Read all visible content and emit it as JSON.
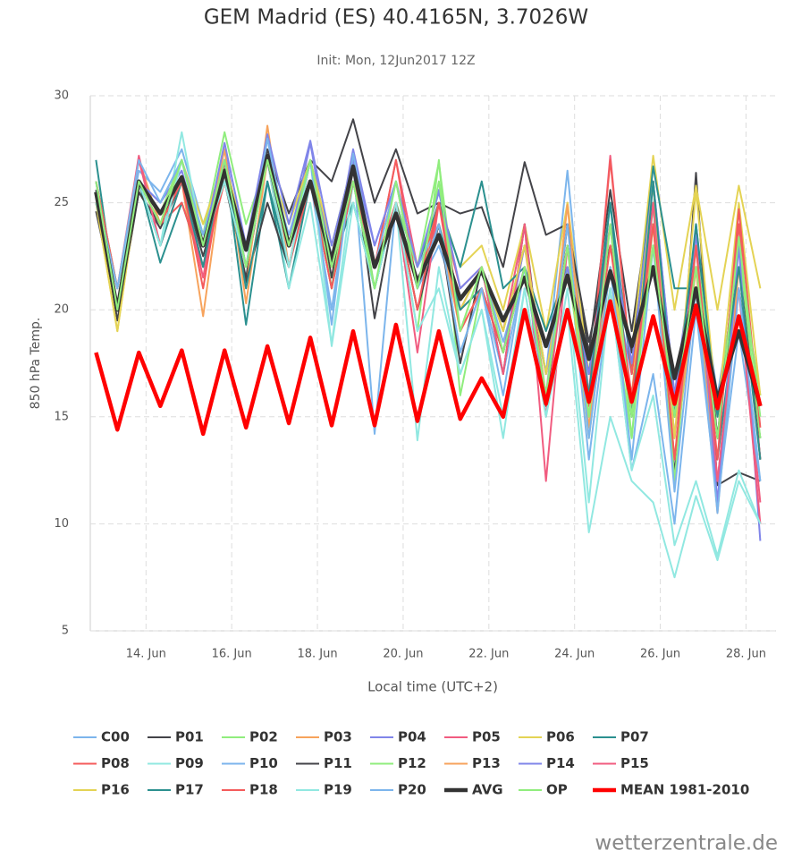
{
  "chart_data": {
    "type": "line",
    "title": "GEM Madrid (ES) 40.4165N, 3.7026W",
    "subtitle": "Init: Mon, 12Jun2017 12Z",
    "y_label": "850 hPa Temp.",
    "x_label": "Local time (UTC+2)",
    "watermark": "wetterzentrale.de",
    "grid": true,
    "xlim": [
      12.7,
      28.7
    ],
    "ylim": [
      5,
      30
    ],
    "yticks": [
      5,
      10,
      15,
      20,
      25,
      30
    ],
    "xticks": [
      {
        "value": 14,
        "label": "14. Jun"
      },
      {
        "value": 16,
        "label": "16. Jun"
      },
      {
        "value": 18,
        "label": "18. Jun"
      },
      {
        "value": 20,
        "label": "20. Jun"
      },
      {
        "value": 22,
        "label": "22. Jun"
      },
      {
        "value": 24,
        "label": "24. Jun"
      },
      {
        "value": 26,
        "label": "26. Jun"
      },
      {
        "value": 28,
        "label": "28. Jun"
      }
    ],
    "x": [
      12.833,
      13.333,
      13.833,
      14.333,
      14.833,
      15.333,
      15.833,
      16.333,
      16.833,
      17.333,
      17.833,
      18.333,
      18.833,
      19.333,
      19.833,
      20.333,
      20.833,
      21.333,
      21.833,
      22.333,
      22.833,
      23.333,
      23.833,
      24.333,
      24.833,
      25.333,
      25.833,
      26.333,
      26.833,
      27.333,
      27.833,
      28.333
    ],
    "series": [
      {
        "name": "C00",
        "color": "#7cb5ec",
        "values": [
          26,
          21,
          26.5,
          25.5,
          27.5,
          24,
          27,
          23,
          27,
          23.5,
          27,
          22.5,
          26,
          21,
          25,
          21,
          23,
          20,
          22,
          18.5,
          22,
          17,
          26.5,
          16,
          22,
          15,
          26,
          14,
          23,
          16,
          22,
          16
        ]
      },
      {
        "name": "P01",
        "color": "#434348",
        "values": [
          25.6,
          19.5,
          25.5,
          23.8,
          26,
          22.5,
          26,
          21.5,
          27.5,
          24.5,
          27,
          26,
          28.9,
          25,
          27.5,
          24.5,
          25,
          24.5,
          24.8,
          22,
          26.9,
          23.5,
          24,
          18,
          25.6,
          19,
          26,
          12.2,
          26.4,
          11.8,
          12.4,
          12
        ]
      },
      {
        "name": "P02",
        "color": "#90ed7d",
        "values": [
          26,
          20,
          26,
          25,
          27,
          23.5,
          28.3,
          24,
          27,
          24,
          27,
          23,
          27,
          22,
          25,
          19,
          27,
          16,
          21,
          18,
          22,
          17,
          23,
          14.5,
          21,
          14,
          24,
          13,
          22,
          14,
          22,
          16
        ]
      },
      {
        "name": "P03",
        "color": "#f7a35c",
        "values": [
          26,
          21,
          27,
          24,
          26,
          19.7,
          27,
          21,
          28.6,
          22,
          27,
          22,
          27,
          22,
          26,
          21,
          25,
          20,
          21,
          18,
          22,
          15.5,
          25,
          14.5,
          22,
          16,
          23,
          13,
          21,
          11,
          21,
          14
        ]
      },
      {
        "name": "P04",
        "color": "#8085e9",
        "values": [
          26,
          20,
          26,
          25,
          26.5,
          23,
          27.5,
          22,
          28,
          23,
          27.8,
          22,
          27.5,
          23,
          26,
          22,
          25.5,
          21,
          22,
          19,
          23,
          17,
          24,
          17,
          22,
          17,
          26,
          16,
          23,
          14,
          24,
          13
        ]
      },
      {
        "name": "P05",
        "color": "#f15c80",
        "values": [
          25.5,
          21,
          27.2,
          23,
          26,
          22,
          27,
          22,
          27,
          22,
          26,
          21.5,
          27,
          22,
          27,
          22,
          25,
          21,
          22,
          19,
          24,
          12,
          23,
          16,
          27.2,
          17,
          25,
          16,
          22,
          12,
          21,
          11
        ]
      },
      {
        "name": "P06",
        "color": "#e4d354",
        "values": [
          25,
          19,
          26,
          24.5,
          27,
          24,
          27,
          23,
          27,
          24,
          27,
          23,
          27,
          22,
          26,
          22,
          25,
          22,
          23,
          20,
          24,
          19,
          25,
          17,
          24,
          18,
          27.2,
          20,
          25.8,
          20,
          25.8,
          21
        ]
      },
      {
        "name": "P07",
        "color": "#2b908f",
        "values": [
          27,
          20,
          26,
          22.2,
          25,
          22,
          27,
          19.3,
          26,
          21,
          26,
          22,
          25,
          21,
          25,
          22,
          25,
          22,
          26,
          21,
          22,
          19,
          22,
          17,
          25,
          17,
          26.7,
          21,
          21,
          13,
          21,
          14
        ]
      },
      {
        "name": "P08",
        "color": "#f45b5b",
        "values": [
          25,
          20,
          26,
          24,
          25,
          22,
          26,
          22,
          27,
          23,
          26,
          21,
          27,
          22,
          27,
          21,
          25,
          20,
          21,
          18,
          22,
          16,
          23,
          16,
          27,
          17,
          24,
          15,
          22,
          14,
          24,
          13
        ]
      },
      {
        "name": "P09",
        "color": "#91e8e1",
        "values": [
          25,
          20,
          26,
          23,
          28.3,
          23,
          26,
          22,
          27,
          21,
          25,
          18.4,
          26,
          21,
          25,
          13.9,
          22,
          17,
          20,
          14,
          21,
          15,
          20,
          9.6,
          15,
          12,
          11,
          7.5,
          11.3,
          8.3,
          12,
          10
        ]
      },
      {
        "name": "P10",
        "color": "#7cb5ec",
        "values": [
          26,
          21,
          26,
          25,
          27,
          23.5,
          27,
          22,
          27,
          23,
          26,
          20,
          27,
          14.2,
          25,
          22,
          24,
          18,
          21,
          17,
          22,
          15.5,
          23,
          13,
          21,
          12.5,
          17,
          10,
          20,
          11,
          19,
          12
        ]
      },
      {
        "name": "P11",
        "color": "#434348",
        "values": [
          24.6,
          20,
          25.5,
          24,
          26.2,
          23,
          26.5,
          21.3,
          25,
          22,
          27,
          21.5,
          27,
          19.6,
          25,
          20,
          24,
          17.5,
          22,
          17,
          24,
          15.5,
          24,
          18.5,
          23,
          18,
          25,
          12,
          24,
          14,
          23,
          13
        ]
      },
      {
        "name": "P12",
        "color": "#90ed7d",
        "values": [
          26,
          21,
          26,
          24.5,
          27,
          23,
          27,
          22,
          27,
          23,
          27,
          21,
          27,
          21,
          25,
          22,
          26.9,
          19,
          22,
          19,
          23,
          17,
          22,
          15,
          24,
          14,
          25,
          12,
          23,
          15,
          23,
          14
        ]
      },
      {
        "name": "P13",
        "color": "#f7a35c",
        "values": [
          25,
          21,
          26,
          24,
          27,
          23,
          27.5,
          20.3,
          27,
          22,
          27,
          22,
          26,
          22,
          25,
          21,
          24,
          19,
          21,
          18,
          23,
          16,
          24.9,
          15,
          22,
          15.5,
          24,
          13,
          22,
          10.5,
          22,
          13
        ]
      },
      {
        "name": "P14",
        "color": "#8085e9",
        "values": [
          26,
          20,
          26,
          25,
          27,
          23,
          27.8,
          23,
          28.2,
          24,
          27.9,
          23,
          27,
          23,
          26,
          22,
          25.6,
          21,
          22,
          18,
          23,
          17,
          22,
          17,
          24,
          17.5,
          26,
          16,
          23.5,
          11,
          23,
          9.2
        ]
      },
      {
        "name": "P15",
        "color": "#f15c80",
        "values": [
          25,
          21,
          27,
          23,
          26,
          21.5,
          27,
          22,
          27,
          22,
          27,
          22,
          26,
          22,
          25,
          18,
          25,
          20,
          22,
          17,
          24,
          15,
          23,
          16,
          24,
          15,
          25,
          14,
          23,
          12,
          21,
          10
        ]
      },
      {
        "name": "P16",
        "color": "#e4d354",
        "values": [
          25,
          19,
          26,
          24,
          27,
          23,
          27,
          22,
          27,
          23,
          27,
          22,
          26,
          21,
          25,
          21,
          24,
          20,
          22,
          19,
          23,
          17,
          23,
          14,
          22,
          16,
          26,
          14,
          25.6,
          15,
          25,
          16
        ]
      },
      {
        "name": "P17",
        "color": "#2b908f",
        "values": [
          25.5,
          20,
          26,
          23,
          26,
          22,
          27,
          21,
          26,
          22,
          26,
          21,
          26,
          21,
          25,
          21,
          24,
          20,
          21,
          18,
          22,
          16,
          23,
          16,
          25,
          15,
          26,
          15,
          24,
          15,
          22,
          13
        ]
      },
      {
        "name": "P18",
        "color": "#f45b5b",
        "values": [
          26,
          21,
          26,
          24,
          26,
          21,
          27,
          22,
          27,
          22,
          26,
          21,
          26,
          22,
          25,
          20,
          25,
          19,
          21,
          18,
          22,
          16,
          23,
          15.5,
          23,
          16,
          24,
          13,
          23,
          13,
          24.7,
          14.5
        ]
      },
      {
        "name": "P19",
        "color": "#91e8e1",
        "values": [
          25,
          21,
          26,
          23,
          27,
          23,
          26,
          22,
          27,
          22,
          27,
          18.3,
          25,
          21,
          25,
          19,
          21,
          17,
          20,
          15,
          21,
          15,
          21,
          11,
          21,
          12.5,
          16,
          9,
          12,
          8.5,
          12.5,
          10
        ]
      },
      {
        "name": "P20",
        "color": "#7cb5ec",
        "values": [
          25.5,
          21,
          27,
          25,
          27,
          23,
          27,
          22,
          28,
          23,
          27,
          19.3,
          27.3,
          22,
          26,
          21,
          24,
          18,
          21,
          16,
          22,
          16,
          24,
          14,
          22,
          13,
          23,
          11.5,
          21,
          10.5,
          21,
          12
        ]
      },
      {
        "name": "AVG",
        "color": "#333333",
        "width": 4.5,
        "values": [
          25.5,
          20,
          26,
          24.5,
          26.2,
          23,
          26.5,
          22.8,
          27.2,
          23,
          26,
          22.3,
          26.7,
          22,
          24.5,
          21.3,
          23.5,
          20.5,
          21.8,
          19.5,
          21.5,
          18.3,
          21.6,
          17.7,
          21.8,
          18.3,
          22,
          16.8,
          21,
          15.8,
          19,
          15.5
        ]
      },
      {
        "name": "OP",
        "color": "#90ed7d",
        "values": [
          26,
          20,
          26,
          24,
          27,
          23,
          27,
          22,
          27,
          23,
          27,
          22,
          26,
          21,
          26,
          21,
          26,
          19,
          22,
          18,
          22,
          16,
          23,
          15,
          24,
          15,
          23,
          15,
          22,
          14,
          23.4,
          15
        ]
      },
      {
        "name": "MEAN 1981-2010",
        "color": "#ff0000",
        "width": 4.5,
        "values": [
          18,
          14.4,
          18,
          15.5,
          18.1,
          14.2,
          18.1,
          14.5,
          18.3,
          14.7,
          18.7,
          14.6,
          19,
          14.6,
          19.3,
          14.8,
          19,
          14.9,
          16.8,
          15,
          20,
          15.6,
          20,
          15.7,
          20.4,
          15.7,
          19.7,
          15.6,
          20.2,
          15.4,
          19.7,
          15.5
        ]
      }
    ]
  }
}
